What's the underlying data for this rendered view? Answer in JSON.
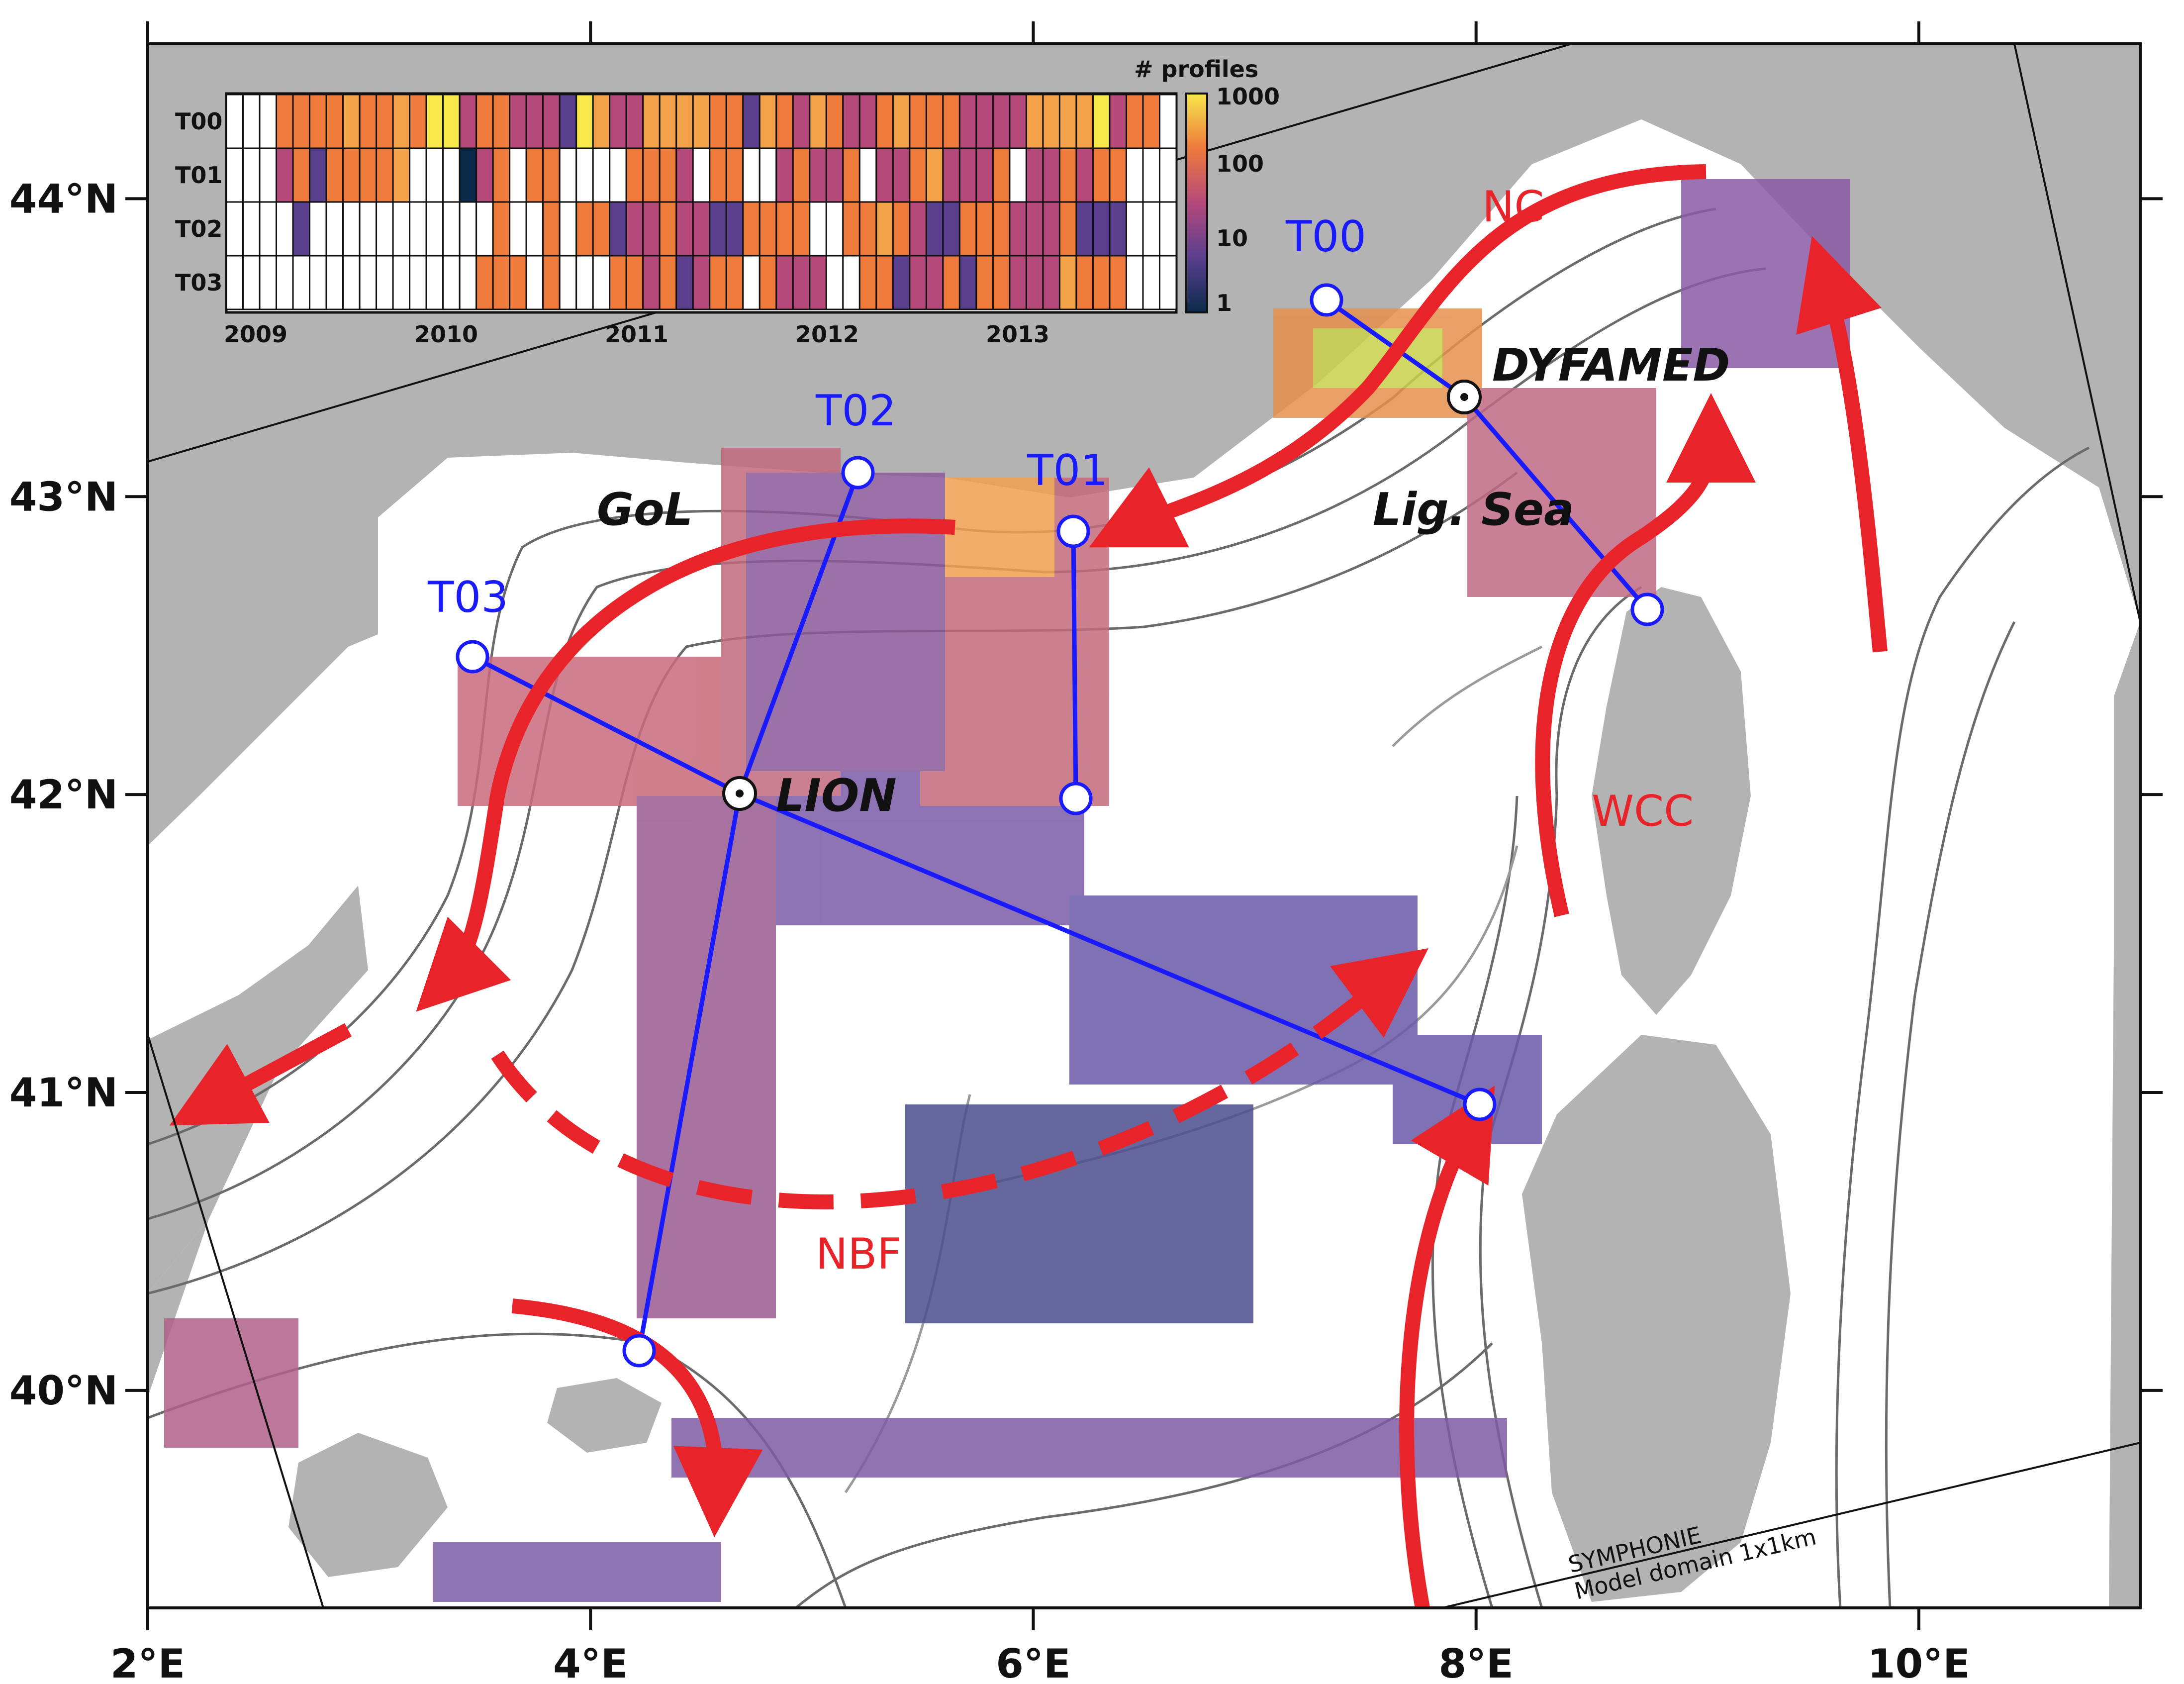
{
  "map": {
    "lon_ticks": [
      {
        "label": "2°E",
        "lon": 2
      },
      {
        "label": "4°E",
        "lon": 4
      },
      {
        "label": "6°E",
        "lon": 6
      },
      {
        "label": "8°E",
        "lon": 8
      },
      {
        "label": "10°E",
        "lon": 10
      }
    ],
    "lat_ticks": [
      {
        "label": "40°N",
        "lat": 40
      },
      {
        "label": "41°N",
        "lat": 41
      },
      {
        "label": "42°N",
        "lat": 42
      },
      {
        "label": "43°N",
        "lat": 43
      },
      {
        "label": "44°N",
        "lat": 44
      }
    ],
    "extent": {
      "lon": [
        2,
        11
      ],
      "lat": [
        39.27,
        44.52
      ]
    },
    "colors": {
      "land": "#b3b3b3",
      "current": "#e8242a",
      "section": "#1a1aff",
      "contour": "#555555"
    },
    "currents": [
      {
        "label": "NC",
        "lon": 8.1,
        "lat": 44.0
      },
      {
        "label": "WCC",
        "lon": 8.5,
        "lat": 41.95
      },
      {
        "label": "NBF",
        "lon": 5.3,
        "lat": 40.45
      }
    ],
    "places": [
      {
        "label": "GoL",
        "lon": 4.05,
        "lat": 42.98
      },
      {
        "label": "Lig. Sea",
        "lon": 7.35,
        "lat": 42.98
      },
      {
        "label": "DYFAMED",
        "lon": 8.05,
        "lat": 43.35
      },
      {
        "label": "LION",
        "lon": 4.98,
        "lat": 42.03
      }
    ],
    "stations": [
      {
        "label": "T00",
        "lon": 7.1,
        "lat": 43.85
      },
      {
        "label": "T01",
        "lon": 6.15,
        "lat": 43.1
      },
      {
        "label": "T02",
        "lon": 5.18,
        "lat": 43.3
      },
      {
        "label": "T03",
        "lon": 3.45,
        "lat": 42.7
      }
    ],
    "model_domain": [
      "SYMPHONIE",
      "Model domain 1x1km"
    ]
  },
  "inset": {
    "colorbar_title": "# profiles",
    "colorbar_ticks": [
      "1000",
      "100",
      "10",
      "1"
    ],
    "rows": [
      "T00",
      "T01",
      "T02",
      "T03"
    ],
    "years": [
      "2009",
      "2010",
      "2011",
      "2012",
      "2013"
    ]
  }
}
